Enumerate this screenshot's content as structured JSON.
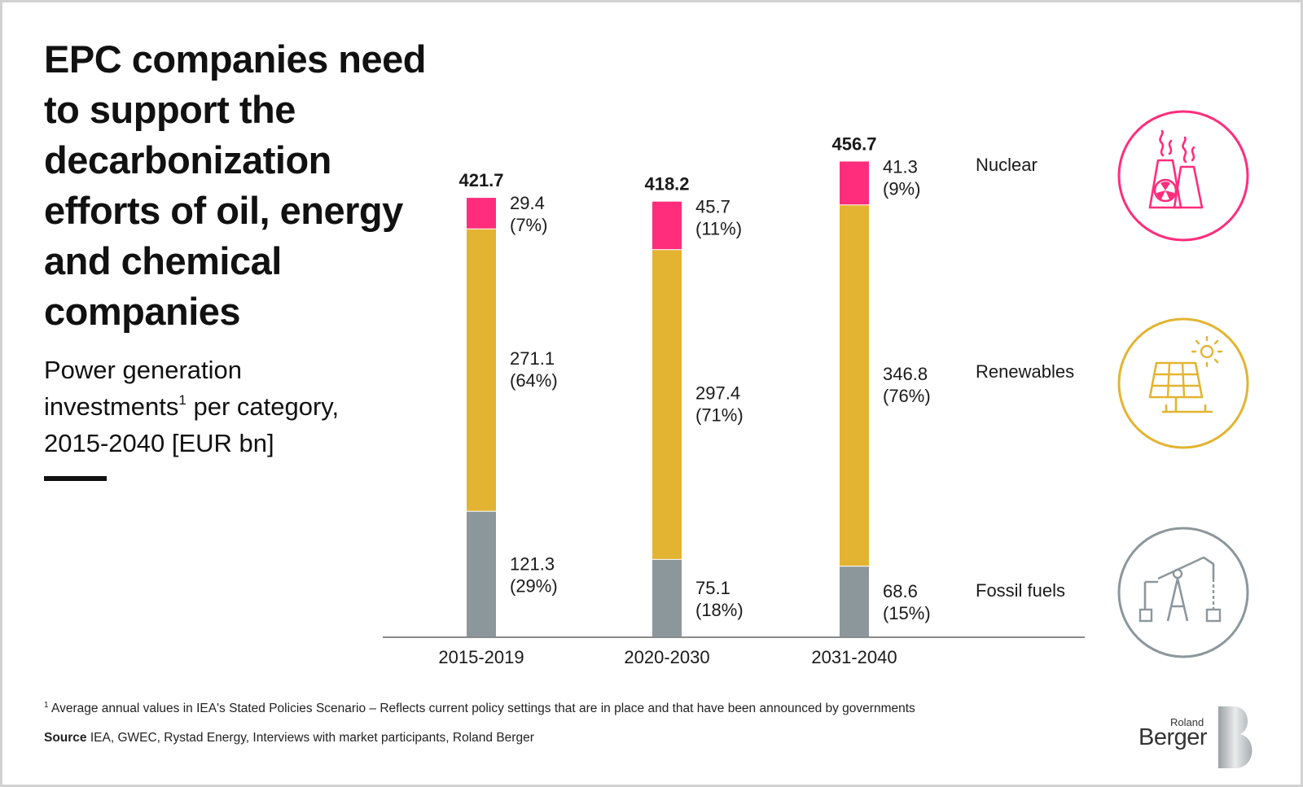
{
  "title": "EPC companies need to support the decarbonization efforts of oil, energy and chemical companies",
  "subtitle": {
    "line1": "Power generation",
    "line2a": "investments",
    "sup": "1",
    "line2b": " per category,",
    "line3": "2015-2040 [EUR bn]"
  },
  "colors": {
    "nuclear": "#ff2d7c",
    "renewables": "#e3b432",
    "fossil": "#8c979c",
    "axis": "#8a8a8a",
    "text": "#1a1a1a"
  },
  "chart_data": {
    "type": "bar",
    "stacked": true,
    "categories": [
      "2015-2019",
      "2020-2030",
      "2031-2040"
    ],
    "totals": [
      "421.7",
      "418.2",
      "456.7"
    ],
    "series": [
      {
        "name": "Fossil fuels",
        "values": [
          121.3,
          75.1,
          68.6
        ],
        "labels": [
          "121.3",
          "75.1",
          "68.6"
        ],
        "shares": [
          "(29%)",
          "(18%)",
          "(15%)"
        ]
      },
      {
        "name": "Renewables",
        "values": [
          271.1,
          297.4,
          346.8
        ],
        "labels": [
          "271.1",
          "297.4",
          "346.8"
        ],
        "shares": [
          "(64%)",
          "(71%)",
          "(76%)"
        ]
      },
      {
        "name": "Nuclear",
        "values": [
          29.4,
          45.7,
          41.3
        ],
        "labels": [
          "29.4",
          "45.7",
          "41.3"
        ],
        "shares": [
          "(7%)",
          "(11%)",
          "(9%)"
        ]
      }
    ],
    "ylim": [
      0,
      460
    ],
    "legend_placement": "right",
    "grid": false
  },
  "icons": {
    "nuclear": "nuclear-plant-icon",
    "renewables": "solar-panel-icon",
    "fossil": "oil-pump-icon"
  },
  "footnote": {
    "sup": "1",
    "text": " Average annual values in IEA's Stated Policies Scenario – Reflects current policy settings that are in place and that have been announced by governments"
  },
  "source": {
    "label": "Source",
    "text": " IEA, GWEC, Rystad Energy, Interviews with market participants, Roland Berger"
  },
  "logo": {
    "line1": "Roland",
    "line2": "Berger"
  }
}
